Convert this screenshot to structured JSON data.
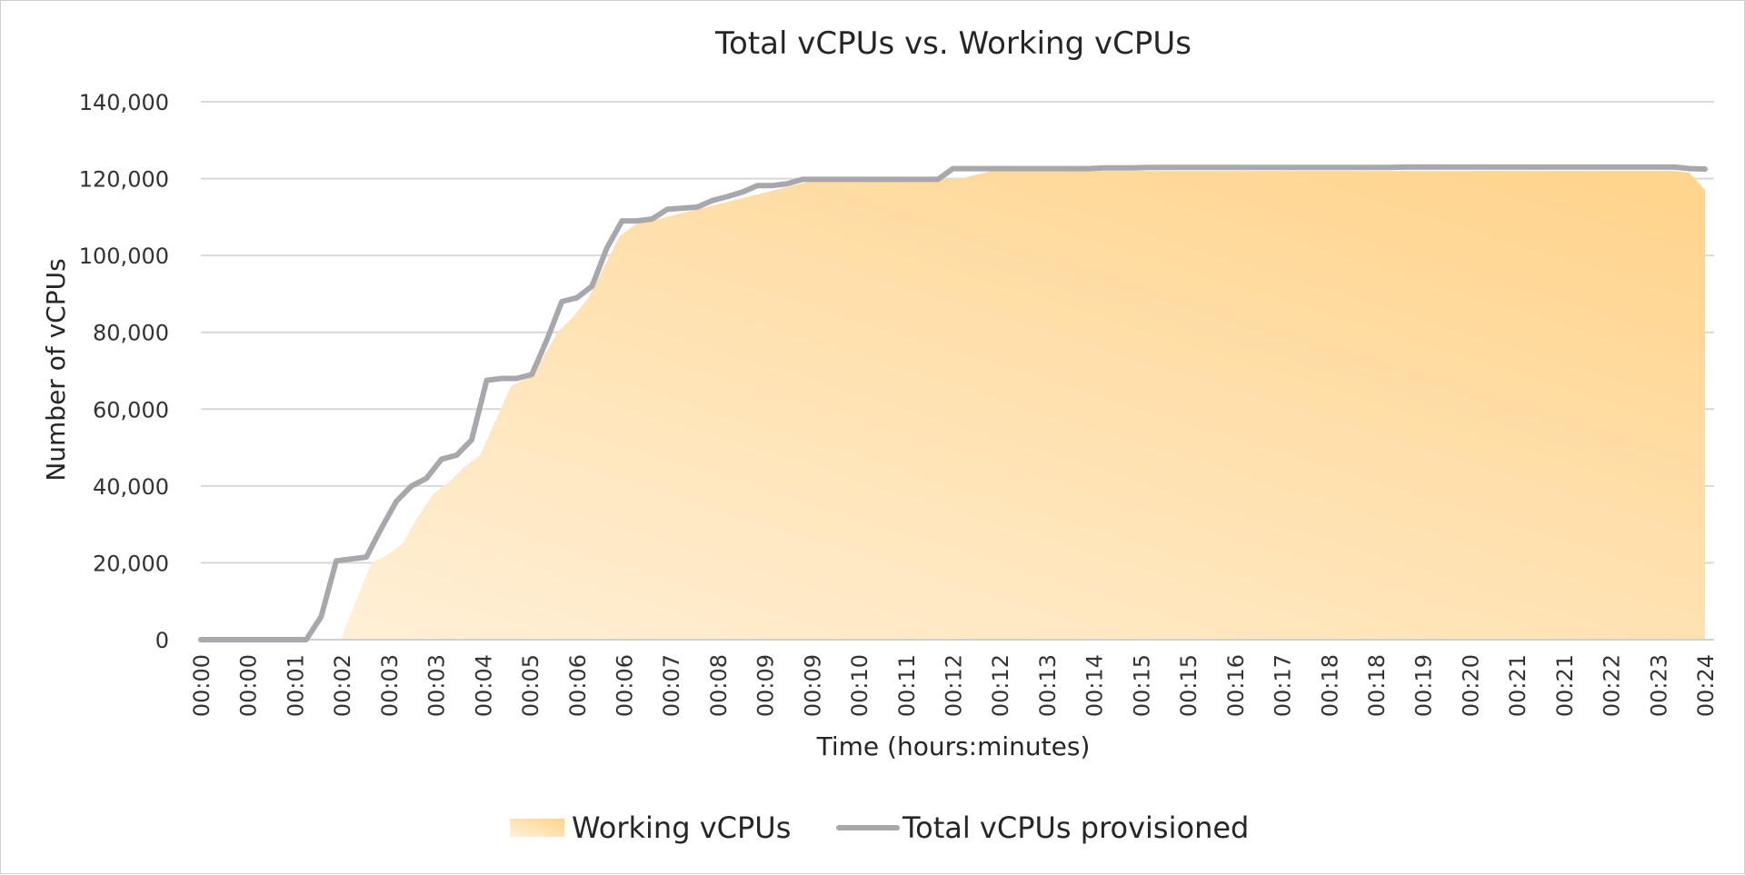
{
  "chart_data": {
    "type": "area",
    "title": "Total vCPUs vs. Working vCPUs",
    "xlabel": "Time (hours:minutes)",
    "ylabel": "Number of vCPUs",
    "ylim": [
      0,
      140000
    ],
    "yticks": [
      0,
      20000,
      40000,
      60000,
      80000,
      100000,
      120000,
      140000
    ],
    "ytick_labels": [
      "0",
      "20,000",
      "40,000",
      "60,000",
      "80,000",
      "100,000",
      "120,000",
      "140,000"
    ],
    "x_labels": [
      "00:00",
      "00:00",
      "00:01",
      "00:02",
      "00:03",
      "00:03",
      "00:04",
      "00:05",
      "00:06",
      "00:06",
      "00:07",
      "00:08",
      "00:09",
      "00:09",
      "00:10",
      "00:11",
      "00:12",
      "00:12",
      "00:13",
      "00:14",
      "00:15",
      "00:15",
      "00:16",
      "00:17",
      "00:18",
      "00:18",
      "00:19",
      "00:20",
      "00:21",
      "00:21",
      "00:22",
      "00:23",
      "00:24"
    ],
    "grid": true,
    "legend": "bottom",
    "series": [
      {
        "name": "Working vCPUs",
        "kind": "area",
        "color": "#FFD38A",
        "values": [
          0,
          0,
          0,
          0,
          0,
          0,
          0,
          0,
          0,
          0,
          10000,
          20000,
          22000,
          25000,
          32000,
          38000,
          41000,
          45000,
          48000,
          57000,
          66000,
          68000,
          73000,
          80000,
          84000,
          89000,
          97000,
          105000,
          108000,
          109000,
          110000,
          111000,
          112000,
          113000,
          114000,
          115000,
          116000,
          117000,
          118000,
          119000,
          119500,
          119800,
          119900,
          120000,
          120000,
          120000,
          120000,
          120000,
          120000,
          120000,
          121000,
          122000,
          122000,
          122000,
          122000,
          122000,
          122000,
          122000,
          122000,
          122000,
          122000,
          122000,
          122000,
          122000,
          122000,
          122000,
          122000,
          122000,
          122000,
          122000,
          122000,
          122000,
          122000,
          122000,
          122000,
          122000,
          122000,
          122000,
          122000,
          122000,
          122000,
          122000,
          122000,
          122000,
          122000,
          122000,
          122000,
          122000,
          122000,
          122000,
          122000,
          122000,
          122000,
          122000,
          122000,
          122000,
          121500,
          117000
        ]
      },
      {
        "name": "Total vCPUs provisioned",
        "kind": "line",
        "color": "#A9A7AB",
        "values": [
          0,
          0,
          0,
          0,
          0,
          0,
          0,
          0,
          6000,
          20500,
          21000,
          21500,
          29000,
          36000,
          40000,
          42000,
          47000,
          48000,
          52000,
          67500,
          68000,
          68000,
          69000,
          78000,
          88000,
          89000,
          92000,
          102000,
          109000,
          109000,
          109500,
          112000,
          112300,
          112600,
          114300,
          115300,
          116500,
          118200,
          118200,
          118700,
          119800,
          119800,
          119800,
          119800,
          119800,
          119800,
          119800,
          119800,
          119800,
          119800,
          122600,
          122600,
          122600,
          122600,
          122600,
          122600,
          122600,
          122600,
          122600,
          122600,
          122800,
          122800,
          122800,
          122900,
          122900,
          122900,
          122900,
          122900,
          122900,
          122900,
          122900,
          122900,
          122900,
          122900,
          122900,
          122900,
          122900,
          122900,
          122900,
          122900,
          123000,
          123000,
          123000,
          123000,
          123000,
          123000,
          123000,
          123000,
          123000,
          123000,
          123000,
          123000,
          123000,
          123000,
          123000,
          123000,
          123000,
          123000,
          123000,
          122600,
          122500
        ]
      }
    ]
  }
}
